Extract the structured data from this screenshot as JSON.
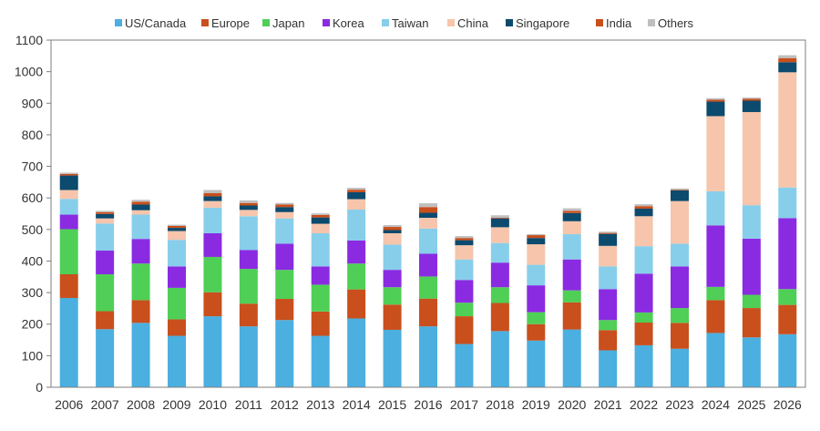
{
  "chart_data": {
    "type": "bar",
    "stacked": true,
    "categories": [
      "2006",
      "2007",
      "2008",
      "2009",
      "2010",
      "2011",
      "2012",
      "2013",
      "2014",
      "2015",
      "2016",
      "2017",
      "2018",
      "2019",
      "2020",
      "2021",
      "2022",
      "2023",
      "2024",
      "2025",
      "2026"
    ],
    "ylim": [
      0,
      1100
    ],
    "yticks": [
      0,
      100,
      200,
      300,
      400,
      500,
      600,
      700,
      800,
      900,
      1000,
      1100
    ],
    "grid": false,
    "legend": "top",
    "series": [
      {
        "name": "US/Canada",
        "color": "#4bafe0",
        "values": [
          283,
          184,
          204,
          163,
          225,
          193,
          213,
          163,
          218,
          182,
          193,
          137,
          178,
          148,
          183,
          117,
          133,
          122,
          172,
          158,
          168
        ]
      },
      {
        "name": "Europe",
        "color": "#c94f1c",
        "values": [
          75,
          57,
          72,
          52,
          76,
          72,
          67,
          77,
          92,
          80,
          88,
          88,
          89,
          52,
          86,
          64,
          72,
          82,
          104,
          93,
          93
        ]
      },
      {
        "name": "Japan",
        "color": "#4fcf56",
        "values": [
          143,
          117,
          116,
          100,
          112,
          110,
          92,
          85,
          82,
          55,
          70,
          43,
          50,
          38,
          38,
          32,
          32,
          47,
          42,
          42,
          50
        ]
      },
      {
        "name": "Korea",
        "color": "#8a2be2",
        "values": [
          46,
          75,
          78,
          68,
          75,
          60,
          83,
          58,
          73,
          55,
          72,
          72,
          78,
          85,
          98,
          98,
          123,
          132,
          195,
          178,
          225
        ]
      },
      {
        "name": "Taiwan",
        "color": "#87ceeb",
        "values": [
          50,
          86,
          77,
          84,
          81,
          107,
          80,
          105,
          98,
          80,
          80,
          65,
          62,
          65,
          80,
          72,
          87,
          72,
          108,
          106,
          97
        ]
      },
      {
        "name": "China",
        "color": "#f6c5ab",
        "values": [
          28,
          16,
          14,
          28,
          21,
          20,
          20,
          30,
          33,
          36,
          34,
          45,
          50,
          65,
          41,
          65,
          95,
          135,
          238,
          295,
          365
        ]
      },
      {
        "name": "Singapore",
        "color": "#0c4a6e",
        "values": [
          46,
          14,
          18,
          10,
          15,
          14,
          16,
          20,
          22,
          10,
          16,
          16,
          28,
          20,
          26,
          38,
          24,
          34,
          46,
          36,
          32
        ]
      },
      {
        "name": "India",
        "color": "#c94f1c",
        "values": [
          5,
          6,
          9,
          6,
          10,
          8,
          8,
          8,
          8,
          10,
          18,
          7,
          2,
          9,
          7,
          3,
          8,
          2,
          6,
          6,
          13
        ]
      },
      {
        "name": "Others",
        "color": "#bfbfbf",
        "values": [
          4,
          4,
          6,
          4,
          10,
          8,
          5,
          5,
          6,
          6,
          12,
          6,
          8,
          3,
          8,
          4,
          6,
          4,
          5,
          4,
          9
        ]
      }
    ]
  }
}
